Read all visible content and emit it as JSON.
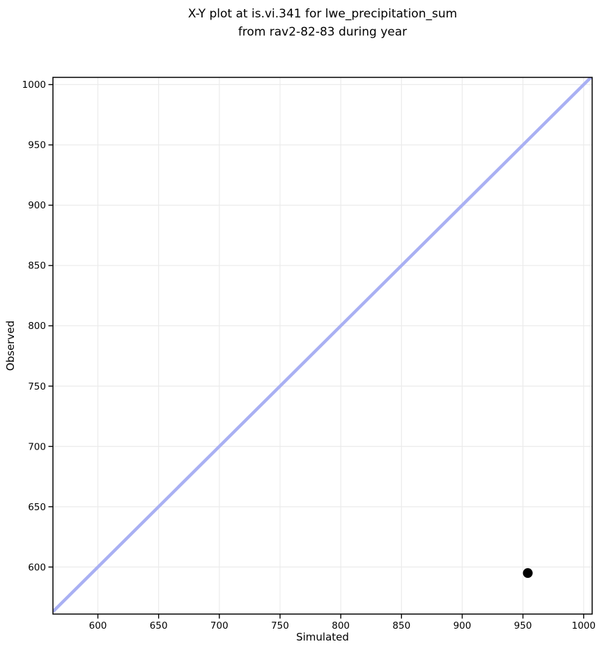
{
  "figure": {
    "title_line1": "X-Y plot at is.vi.341 for lwe_precipitation_sum",
    "title_line2": "from rav2-82-83 during year"
  },
  "chart_data": {
    "type": "scatter",
    "title": "X-Y plot at is.vi.341 for lwe_precipitation_sum\nfrom rav2-82-83 during year",
    "xlabel": "Simulated",
    "ylabel": "Observed",
    "xlim": [
      563,
      1007
    ],
    "ylim": [
      561,
      1006
    ],
    "xticks": [
      600,
      650,
      700,
      750,
      800,
      850,
      900,
      950,
      1000
    ],
    "yticks": [
      600,
      650,
      700,
      750,
      800,
      850,
      900,
      950,
      1000
    ],
    "grid": true,
    "grid_color": "#ebebeb",
    "legend_position": "none",
    "axes_style": {
      "spine_color": "#000000",
      "tick_color": "#000000",
      "background": "#ffffff"
    },
    "series": [
      {
        "name": "identity_line",
        "type": "line",
        "color": "#a9b0f3",
        "width": 4.5,
        "x": [
          563,
          1006
        ],
        "y": [
          563,
          1006
        ]
      },
      {
        "name": "observed_vs_simulated",
        "type": "scatter",
        "color": "#000000",
        "marker": "circle",
        "marker_radius": 7,
        "x": [
          954
        ],
        "y": [
          595
        ]
      }
    ]
  }
}
